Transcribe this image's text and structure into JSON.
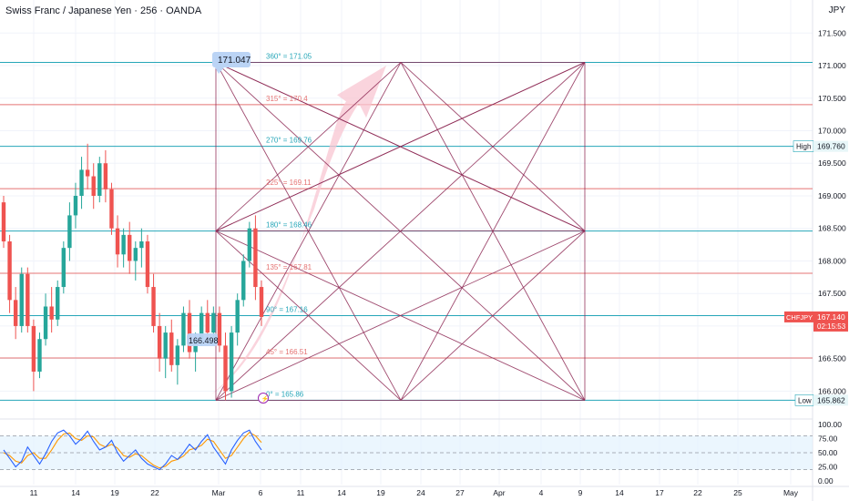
{
  "header": {
    "title": "Swiss Franc / Japanese Yen · 256 · OANDA",
    "currency": "JPY"
  },
  "colors": {
    "up": "#26a69a",
    "down": "#ef5350",
    "teal_line": "#26a6b8",
    "red_line": "#e57373",
    "gann": "#8e2a55",
    "arrow": "#f8c6d2",
    "stoch_k": "#2962ff",
    "stoch_d": "#ff9800",
    "stoch_band": "#e3f2fd"
  },
  "chart_data": {
    "type": "candlestick",
    "price_axis": {
      "ylim": [
        165.6,
        171.7
      ],
      "ticks": [
        "171.500",
        "171.000",
        "170.500",
        "170.000",
        "169.500",
        "169.000",
        "168.500",
        "168.000",
        "167.500",
        "167.000",
        "166.500",
        "166.000"
      ]
    },
    "time_axis": [
      "11",
      "14",
      "19",
      "22",
      "Mar",
      "6",
      "11",
      "14",
      "19",
      "24",
      "27",
      "Apr",
      "4",
      "9",
      "14",
      "17",
      "22",
      "25",
      "May"
    ],
    "gann_levels": [
      {
        "label": "360° = 171.05",
        "price": 171.05,
        "kind": "teal"
      },
      {
        "label": "315° = 170.4",
        "price": 170.4,
        "kind": "red"
      },
      {
        "label": "270° = 169.76",
        "price": 169.76,
        "kind": "teal"
      },
      {
        "label": "225° = 169.11",
        "price": 169.11,
        "kind": "red"
      },
      {
        "label": "180° = 168.46",
        "price": 168.46,
        "kind": "teal"
      },
      {
        "label": "135° = 167.81",
        "price": 167.81,
        "kind": "red"
      },
      {
        "label": "90° = 167.16",
        "price": 167.16,
        "kind": "teal"
      },
      {
        "label": "45° = 166.51",
        "price": 166.51,
        "kind": "red"
      },
      {
        "label": "0° = 165.86",
        "price": 165.86,
        "kind": "teal"
      }
    ],
    "callouts": {
      "top": "171.047",
      "bottom": "166.498"
    },
    "price_tags": {
      "high_label": "High",
      "high_value": "169.760",
      "low_label": "Low",
      "low_value": "165.862",
      "symbol": "CHFJPY",
      "last_price": "167.140",
      "countdown": "02:15:53",
      "last_price_value": 167.14
    },
    "candles": [
      [
        168.9,
        169.0,
        168.2,
        168.3
      ],
      [
        168.3,
        168.4,
        167.2,
        167.4
      ],
      [
        167.4,
        167.6,
        166.8,
        167.0
      ],
      [
        167.0,
        167.9,
        166.9,
        167.8
      ],
      [
        167.8,
        167.9,
        166.9,
        167.0
      ],
      [
        167.0,
        167.1,
        166.0,
        166.3
      ],
      [
        166.3,
        166.9,
        166.2,
        166.8
      ],
      [
        166.8,
        167.5,
        166.7,
        167.3
      ],
      [
        167.3,
        167.6,
        166.9,
        167.1
      ],
      [
        167.1,
        167.7,
        167.0,
        167.6
      ],
      [
        167.6,
        168.3,
        167.5,
        168.2
      ],
      [
        168.2,
        168.9,
        168.0,
        168.7
      ],
      [
        168.7,
        169.2,
        168.5,
        169.0
      ],
      [
        169.0,
        169.6,
        168.8,
        169.4
      ],
      [
        169.4,
        169.8,
        169.1,
        169.3
      ],
      [
        169.3,
        169.5,
        168.8,
        169.0
      ],
      [
        169.0,
        169.6,
        168.9,
        169.5
      ],
      [
        169.5,
        169.7,
        168.9,
        169.1
      ],
      [
        169.1,
        169.2,
        168.4,
        168.5
      ],
      [
        168.5,
        168.7,
        167.9,
        168.1
      ],
      [
        168.1,
        168.5,
        167.9,
        168.4
      ],
      [
        168.4,
        168.6,
        167.8,
        168.0
      ],
      [
        168.0,
        168.3,
        167.7,
        168.2
      ],
      [
        168.2,
        168.5,
        167.9,
        168.3
      ],
      [
        168.3,
        168.4,
        167.5,
        167.6
      ],
      [
        167.6,
        167.8,
        166.9,
        167.0
      ],
      [
        167.0,
        167.2,
        166.3,
        166.5
      ],
      [
        166.5,
        167.0,
        166.2,
        166.9
      ],
      [
        166.9,
        167.1,
        166.3,
        166.4
      ],
      [
        166.4,
        166.8,
        166.1,
        166.7
      ],
      [
        166.7,
        167.3,
        166.6,
        167.2
      ],
      [
        167.2,
        167.4,
        166.5,
        166.6
      ],
      [
        166.6,
        166.9,
        166.3,
        166.8
      ],
      [
        166.8,
        167.3,
        166.7,
        167.2
      ],
      [
        167.2,
        167.4,
        166.8,
        166.9
      ],
      [
        166.9,
        167.3,
        166.8,
        167.2
      ],
      [
        167.2,
        167.3,
        166.6,
        166.7
      ],
      [
        166.7,
        166.9,
        165.86,
        166.0
      ],
      [
        166.0,
        167.0,
        165.9,
        166.9
      ],
      [
        166.9,
        167.5,
        166.7,
        167.4
      ],
      [
        167.4,
        168.1,
        167.3,
        168.0
      ],
      [
        168.0,
        168.6,
        167.9,
        168.5
      ],
      [
        168.5,
        168.7,
        167.4,
        167.6
      ],
      [
        167.6,
        167.7,
        167.0,
        167.14
      ]
    ],
    "stochastic": {
      "ylim": [
        0,
        100
      ],
      "ticks": [
        "100.00",
        "75.00",
        "50.00",
        "25.00",
        "0.00"
      ],
      "upper_band": 80,
      "lower_band": 20,
      "k": [
        55,
        40,
        25,
        35,
        60,
        45,
        30,
        48,
        70,
        85,
        90,
        80,
        65,
        75,
        88,
        70,
        55,
        60,
        72,
        50,
        35,
        45,
        55,
        40,
        30,
        25,
        20,
        30,
        45,
        38,
        50,
        65,
        55,
        70,
        82,
        60,
        45,
        30,
        55,
        72,
        85,
        90,
        70,
        55
      ],
      "d": [
        50,
        45,
        35,
        32,
        45,
        50,
        40,
        40,
        55,
        72,
        83,
        85,
        75,
        72,
        80,
        78,
        65,
        60,
        65,
        58,
        45,
        42,
        48,
        45,
        36,
        28,
        23,
        26,
        35,
        38,
        44,
        55,
        58,
        63,
        74,
        70,
        55,
        40,
        45,
        60,
        75,
        86,
        80,
        68
      ]
    }
  }
}
